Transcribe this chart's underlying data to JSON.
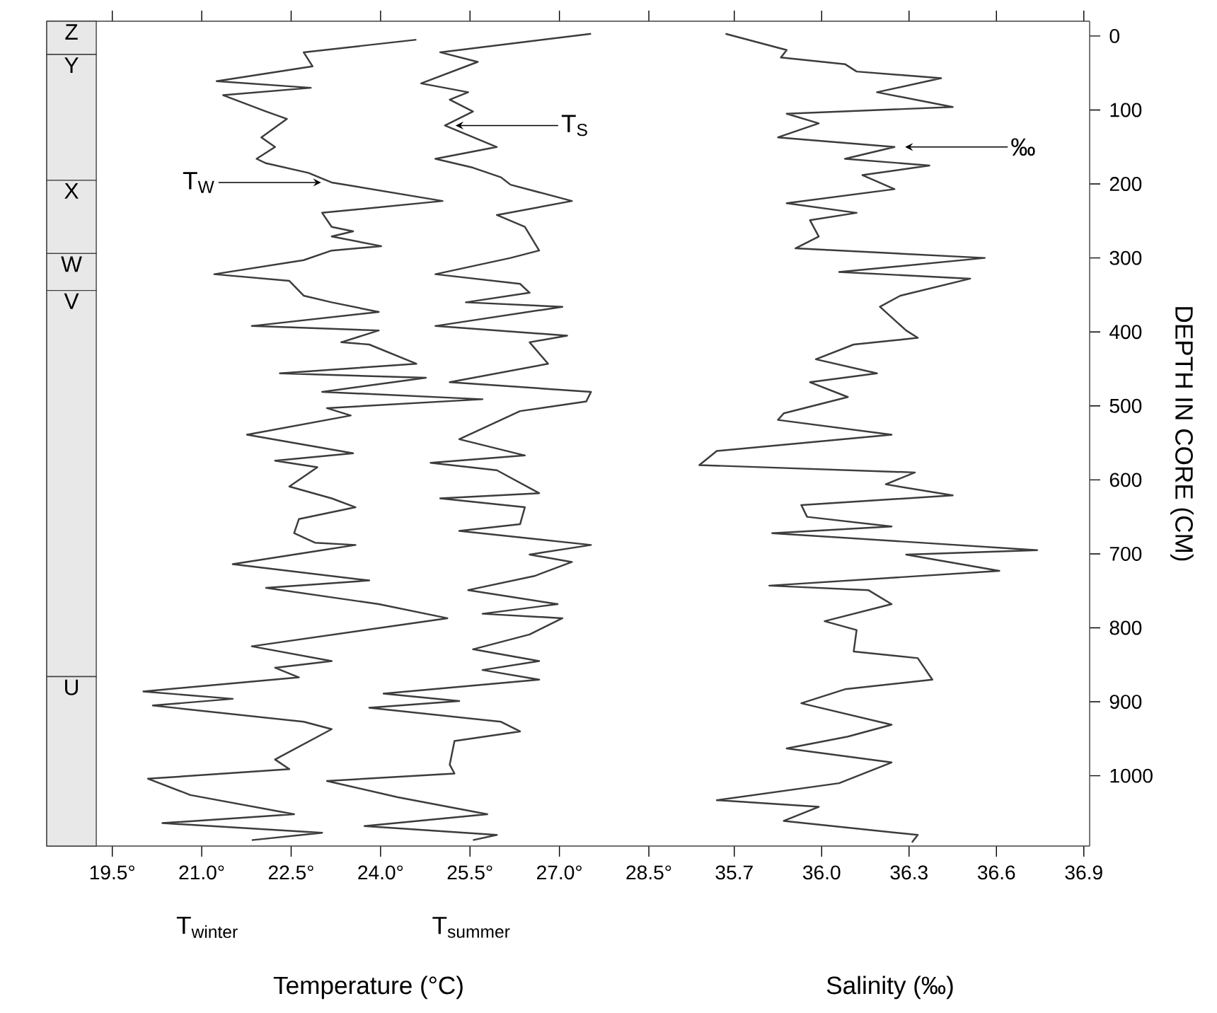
{
  "chart_data": [
    {
      "type": "line",
      "xlabel": "Temperature (°C)",
      "xlim": [
        18.4,
        29.2
      ],
      "ylim": [
        1095,
        -20
      ],
      "tick_labels": "x",
      "marker": "none",
      "line_style": "solid",
      "xticks": [
        {
          "value": 19.5,
          "label": "19.5°"
        },
        {
          "value": 21.0,
          "label": "21.0°"
        },
        {
          "value": 22.5,
          "label": "22.5°"
        },
        {
          "value": 24.0,
          "label": "24.0°"
        },
        {
          "value": 25.5,
          "label": "25.5°"
        },
        {
          "value": 27.0,
          "label": "27.0°"
        },
        {
          "value": 28.5,
          "label": "28.5°"
        }
      ],
      "bands": [
        {
          "axis": "y",
          "from": -20,
          "to": 25,
          "label": "Z",
          "color": "#e8e8e8"
        },
        {
          "axis": "y",
          "from": 25,
          "to": 195,
          "label": "Y",
          "color": "#e8e8e8"
        },
        {
          "axis": "y",
          "from": 195,
          "to": 294,
          "label": "X",
          "color": "#e8e8e8"
        },
        {
          "axis": "y",
          "from": 294,
          "to": 344,
          "label": "W",
          "color": "#e8e8e8"
        },
        {
          "axis": "y",
          "from": 344,
          "to": 866,
          "label": "V",
          "color": "#e8e8e8"
        },
        {
          "axis": "y",
          "from": 866,
          "to": 1095,
          "label": "U",
          "color": "#e8e8e8"
        }
      ],
      "annotations": [
        "T$_{winter}$",
        "T$_{summer}$"
      ],
      "series": [
        {
          "name": "T$_{W}$",
          "color": "#3c3c3c",
          "x": [
            24.6,
            22.71,
            22.86,
            21.25,
            22.83,
            21.36,
            22.08,
            22.43,
            22.0,
            22.23,
            21.92,
            22.08,
            22.79,
            23.18,
            25.04,
            23.02,
            23.18,
            23.54,
            23.18,
            24.01,
            23.18,
            22.71,
            21.21,
            22.47,
            22.71,
            23.18,
            23.97,
            21.84,
            23.97,
            23.34,
            23.81,
            24.6,
            22.31,
            24.76,
            23.02,
            25.71,
            23.1,
            23.5,
            21.76,
            23.54,
            22.23,
            22.94,
            22.47,
            23.18,
            23.58,
            22.63,
            22.55,
            22.9,
            23.58,
            23.02,
            21.52,
            23.81,
            22.08,
            23.97,
            25.12,
            21.84,
            23.18,
            22.23,
            22.63,
            20.02,
            21.52,
            20.18,
            22.71,
            23.18,
            22.23,
            22.47,
            20.1,
            20.81,
            22.55,
            20.34,
            23.02,
            21.84
          ],
          "values": [
            5,
            22,
            41,
            61,
            70,
            80,
            102,
            112,
            137,
            150,
            166,
            172,
            185,
            198,
            223,
            239,
            258,
            264,
            271,
            284,
            290,
            303,
            322,
            331,
            351,
            360,
            373,
            392,
            398,
            414,
            417,
            443,
            456,
            462,
            481,
            491,
            503,
            513,
            539,
            564,
            574,
            583,
            609,
            625,
            637,
            653,
            672,
            685,
            688,
            695,
            714,
            736,
            746,
            768,
            787,
            825,
            845,
            854,
            867,
            886,
            896,
            905,
            927,
            937,
            978,
            991,
            1004,
            1026,
            1052,
            1064,
            1077,
            1087
          ]
        },
        {
          "name": "T$_{S}$",
          "color": "#3c3c3c",
          "x": [
            27.53,
            25.0,
            25.63,
            24.68,
            25.47,
            25.16,
            25.55,
            25.08,
            25.95,
            24.92,
            25.55,
            26.02,
            26.18,
            27.21,
            25.95,
            26.42,
            26.66,
            26.18,
            24.92,
            26.34,
            26.5,
            25.43,
            27.05,
            24.92,
            27.13,
            26.5,
            26.81,
            25.16,
            27.53,
            27.45,
            26.34,
            25.32,
            26.42,
            24.84,
            25.95,
            26.66,
            25.0,
            26.42,
            26.34,
            25.32,
            27.53,
            26.5,
            27.21,
            26.58,
            25.47,
            26.97,
            25.71,
            27.05,
            26.5,
            25.55,
            26.66,
            25.71,
            26.66,
            24.05,
            25.32,
            23.81,
            26.02,
            26.34,
            25.24,
            25.16,
            25.24,
            23.1,
            24.29,
            25.79,
            23.73,
            25.95,
            25.55
          ],
          "values": [
            -3,
            22,
            35,
            64,
            76,
            86,
            102,
            121,
            150,
            166,
            178,
            191,
            201,
            223,
            242,
            258,
            290,
            300,
            322,
            335,
            347,
            360,
            366,
            392,
            405,
            414,
            443,
            468,
            481,
            494,
            507,
            545,
            567,
            577,
            587,
            618,
            625,
            637,
            660,
            669,
            688,
            701,
            711,
            730,
            749,
            768,
            781,
            787,
            809,
            829,
            845,
            857,
            870,
            889,
            899,
            908,
            927,
            940,
            953,
            985,
            997,
            1007,
            1029,
            1052,
            1068,
            1080,
            1087
          ]
        }
      ]
    },
    {
      "type": "line",
      "xlabel": "Salinity (‰)",
      "ylabel": "DEPTH IN CORE (CM)",
      "xlim": [
        35.55,
        36.92
      ],
      "ylim": [
        1095,
        -20
      ],
      "marker": "none",
      "line_style": "solid",
      "xticks": [
        35.7,
        {
          "value": 36.0,
          "label": "36.0"
        },
        36.3,
        36.6,
        36.9
      ],
      "yticks": [
        0,
        100,
        200,
        300,
        400,
        500,
        600,
        700,
        800,
        900,
        1000
      ],
      "series": [
        {
          "name": "‰",
          "color": "#3c3c3c",
          "x": [
            35.67,
            35.88,
            35.86,
            36.08,
            36.12,
            36.41,
            36.19,
            36.45,
            35.88,
            35.99,
            35.85,
            36.25,
            36.08,
            36.37,
            36.14,
            36.25,
            35.88,
            36.12,
            35.96,
            35.99,
            35.91,
            36.56,
            36.06,
            36.51,
            36.27,
            36.2,
            36.29,
            36.33,
            36.11,
            35.98,
            36.19,
            35.96,
            36.09,
            35.87,
            35.85,
            36.24,
            35.64,
            35.58,
            36.32,
            36.22,
            36.45,
            35.93,
            35.95,
            36.24,
            35.83,
            36.74,
            36.29,
            36.61,
            35.82,
            36.16,
            36.24,
            36.01,
            36.12,
            36.11,
            36.33,
            36.38,
            36.08,
            35.93,
            36.24,
            36.09,
            35.88,
            36.24,
            36.06,
            35.64,
            35.99,
            35.87,
            36.33,
            36.31
          ],
          "values": [
            -3,
            19,
            29,
            38,
            48,
            57,
            76,
            96,
            105,
            118,
            137,
            150,
            166,
            175,
            188,
            207,
            226,
            239,
            249,
            271,
            287,
            300,
            319,
            328,
            351,
            366,
            398,
            408,
            417,
            437,
            456,
            468,
            488,
            510,
            519,
            539,
            561,
            580,
            590,
            606,
            621,
            634,
            650,
            663,
            672,
            695,
            701,
            723,
            743,
            749,
            768,
            791,
            803,
            832,
            841,
            870,
            883,
            902,
            931,
            947,
            963,
            982,
            1010,
            1033,
            1042,
            1061,
            1080,
            1090
          ]
        }
      ]
    }
  ]
}
